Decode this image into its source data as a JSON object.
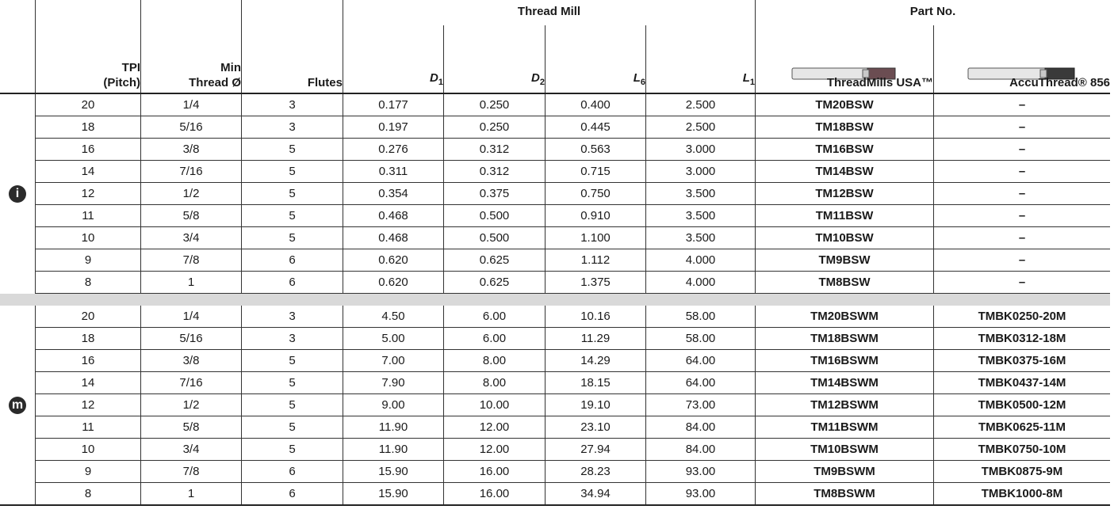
{
  "header": {
    "thread_mill": "Thread Mill",
    "part_no": "Part No.",
    "columns": [
      {
        "lines": [
          "TPI",
          "(Pitch)"
        ]
      },
      {
        "lines": [
          "Min",
          "Thread Ø"
        ]
      },
      {
        "lines": [
          "Flutes"
        ]
      },
      {
        "base": "D",
        "sub": "1"
      },
      {
        "base": "D",
        "sub": "2"
      },
      {
        "base": "L",
        "sub": "6"
      },
      {
        "base": "L",
        "sub": "1"
      },
      {
        "lines": [
          "ThreadMills USA™"
        ]
      },
      {
        "lines": [
          "AccuThread® 856"
        ]
      }
    ]
  },
  "groups": [
    {
      "icon": "i",
      "rows": [
        [
          "20",
          "1/4",
          "3",
          "0.177",
          "0.250",
          "0.400",
          "2.500",
          "TM20BSW",
          "–"
        ],
        [
          "18",
          "5/16",
          "3",
          "0.197",
          "0.250",
          "0.445",
          "2.500",
          "TM18BSW",
          "–"
        ],
        [
          "16",
          "3/8",
          "5",
          "0.276",
          "0.312",
          "0.563",
          "3.000",
          "TM16BSW",
          "–"
        ],
        [
          "14",
          "7/16",
          "5",
          "0.311",
          "0.312",
          "0.715",
          "3.000",
          "TM14BSW",
          "–"
        ],
        [
          "12",
          "1/2",
          "5",
          "0.354",
          "0.375",
          "0.750",
          "3.500",
          "TM12BSW",
          "–"
        ],
        [
          "11",
          "5/8",
          "5",
          "0.468",
          "0.500",
          "0.910",
          "3.500",
          "TM11BSW",
          "–"
        ],
        [
          "10",
          "3/4",
          "5",
          "0.468",
          "0.500",
          "1.100",
          "3.500",
          "TM10BSW",
          "–"
        ],
        [
          "9",
          "7/8",
          "6",
          "0.620",
          "0.625",
          "1.112",
          "4.000",
          "TM9BSW",
          "–"
        ],
        [
          "8",
          "1",
          "6",
          "0.620",
          "0.625",
          "1.375",
          "4.000",
          "TM8BSW",
          "–"
        ]
      ]
    },
    {
      "icon": "m",
      "rows": [
        [
          "20",
          "1/4",
          "3",
          "4.50",
          "6.00",
          "10.16",
          "58.00",
          "TM20BSWM",
          "TMBK0250-20M"
        ],
        [
          "18",
          "5/16",
          "3",
          "5.00",
          "6.00",
          "11.29",
          "58.00",
          "TM18BSWM",
          "TMBK0312-18M"
        ],
        [
          "16",
          "3/8",
          "5",
          "7.00",
          "8.00",
          "14.29",
          "64.00",
          "TM16BSWM",
          "TMBK0375-16M"
        ],
        [
          "14",
          "7/16",
          "5",
          "7.90",
          "8.00",
          "18.15",
          "64.00",
          "TM14BSWM",
          "TMBK0437-14M"
        ],
        [
          "12",
          "1/2",
          "5",
          "9.00",
          "10.00",
          "19.10",
          "73.00",
          "TM12BSWM",
          "TMBK0500-12M"
        ],
        [
          "11",
          "5/8",
          "5",
          "11.90",
          "12.00",
          "23.10",
          "84.00",
          "TM11BSWM",
          "TMBK0625-11M"
        ],
        [
          "10",
          "3/4",
          "5",
          "11.90",
          "12.00",
          "27.94",
          "84.00",
          "TM10BSWM",
          "TMBK0750-10M"
        ],
        [
          "9",
          "7/8",
          "6",
          "15.90",
          "16.00",
          "28.23",
          "93.00",
          "TM9BSWM",
          "TMBK0875-9M"
        ],
        [
          "8",
          "1",
          "6",
          "15.90",
          "16.00",
          "34.94",
          "93.00",
          "TM8BSWM",
          "TMBK1000-8M"
        ]
      ]
    }
  ]
}
